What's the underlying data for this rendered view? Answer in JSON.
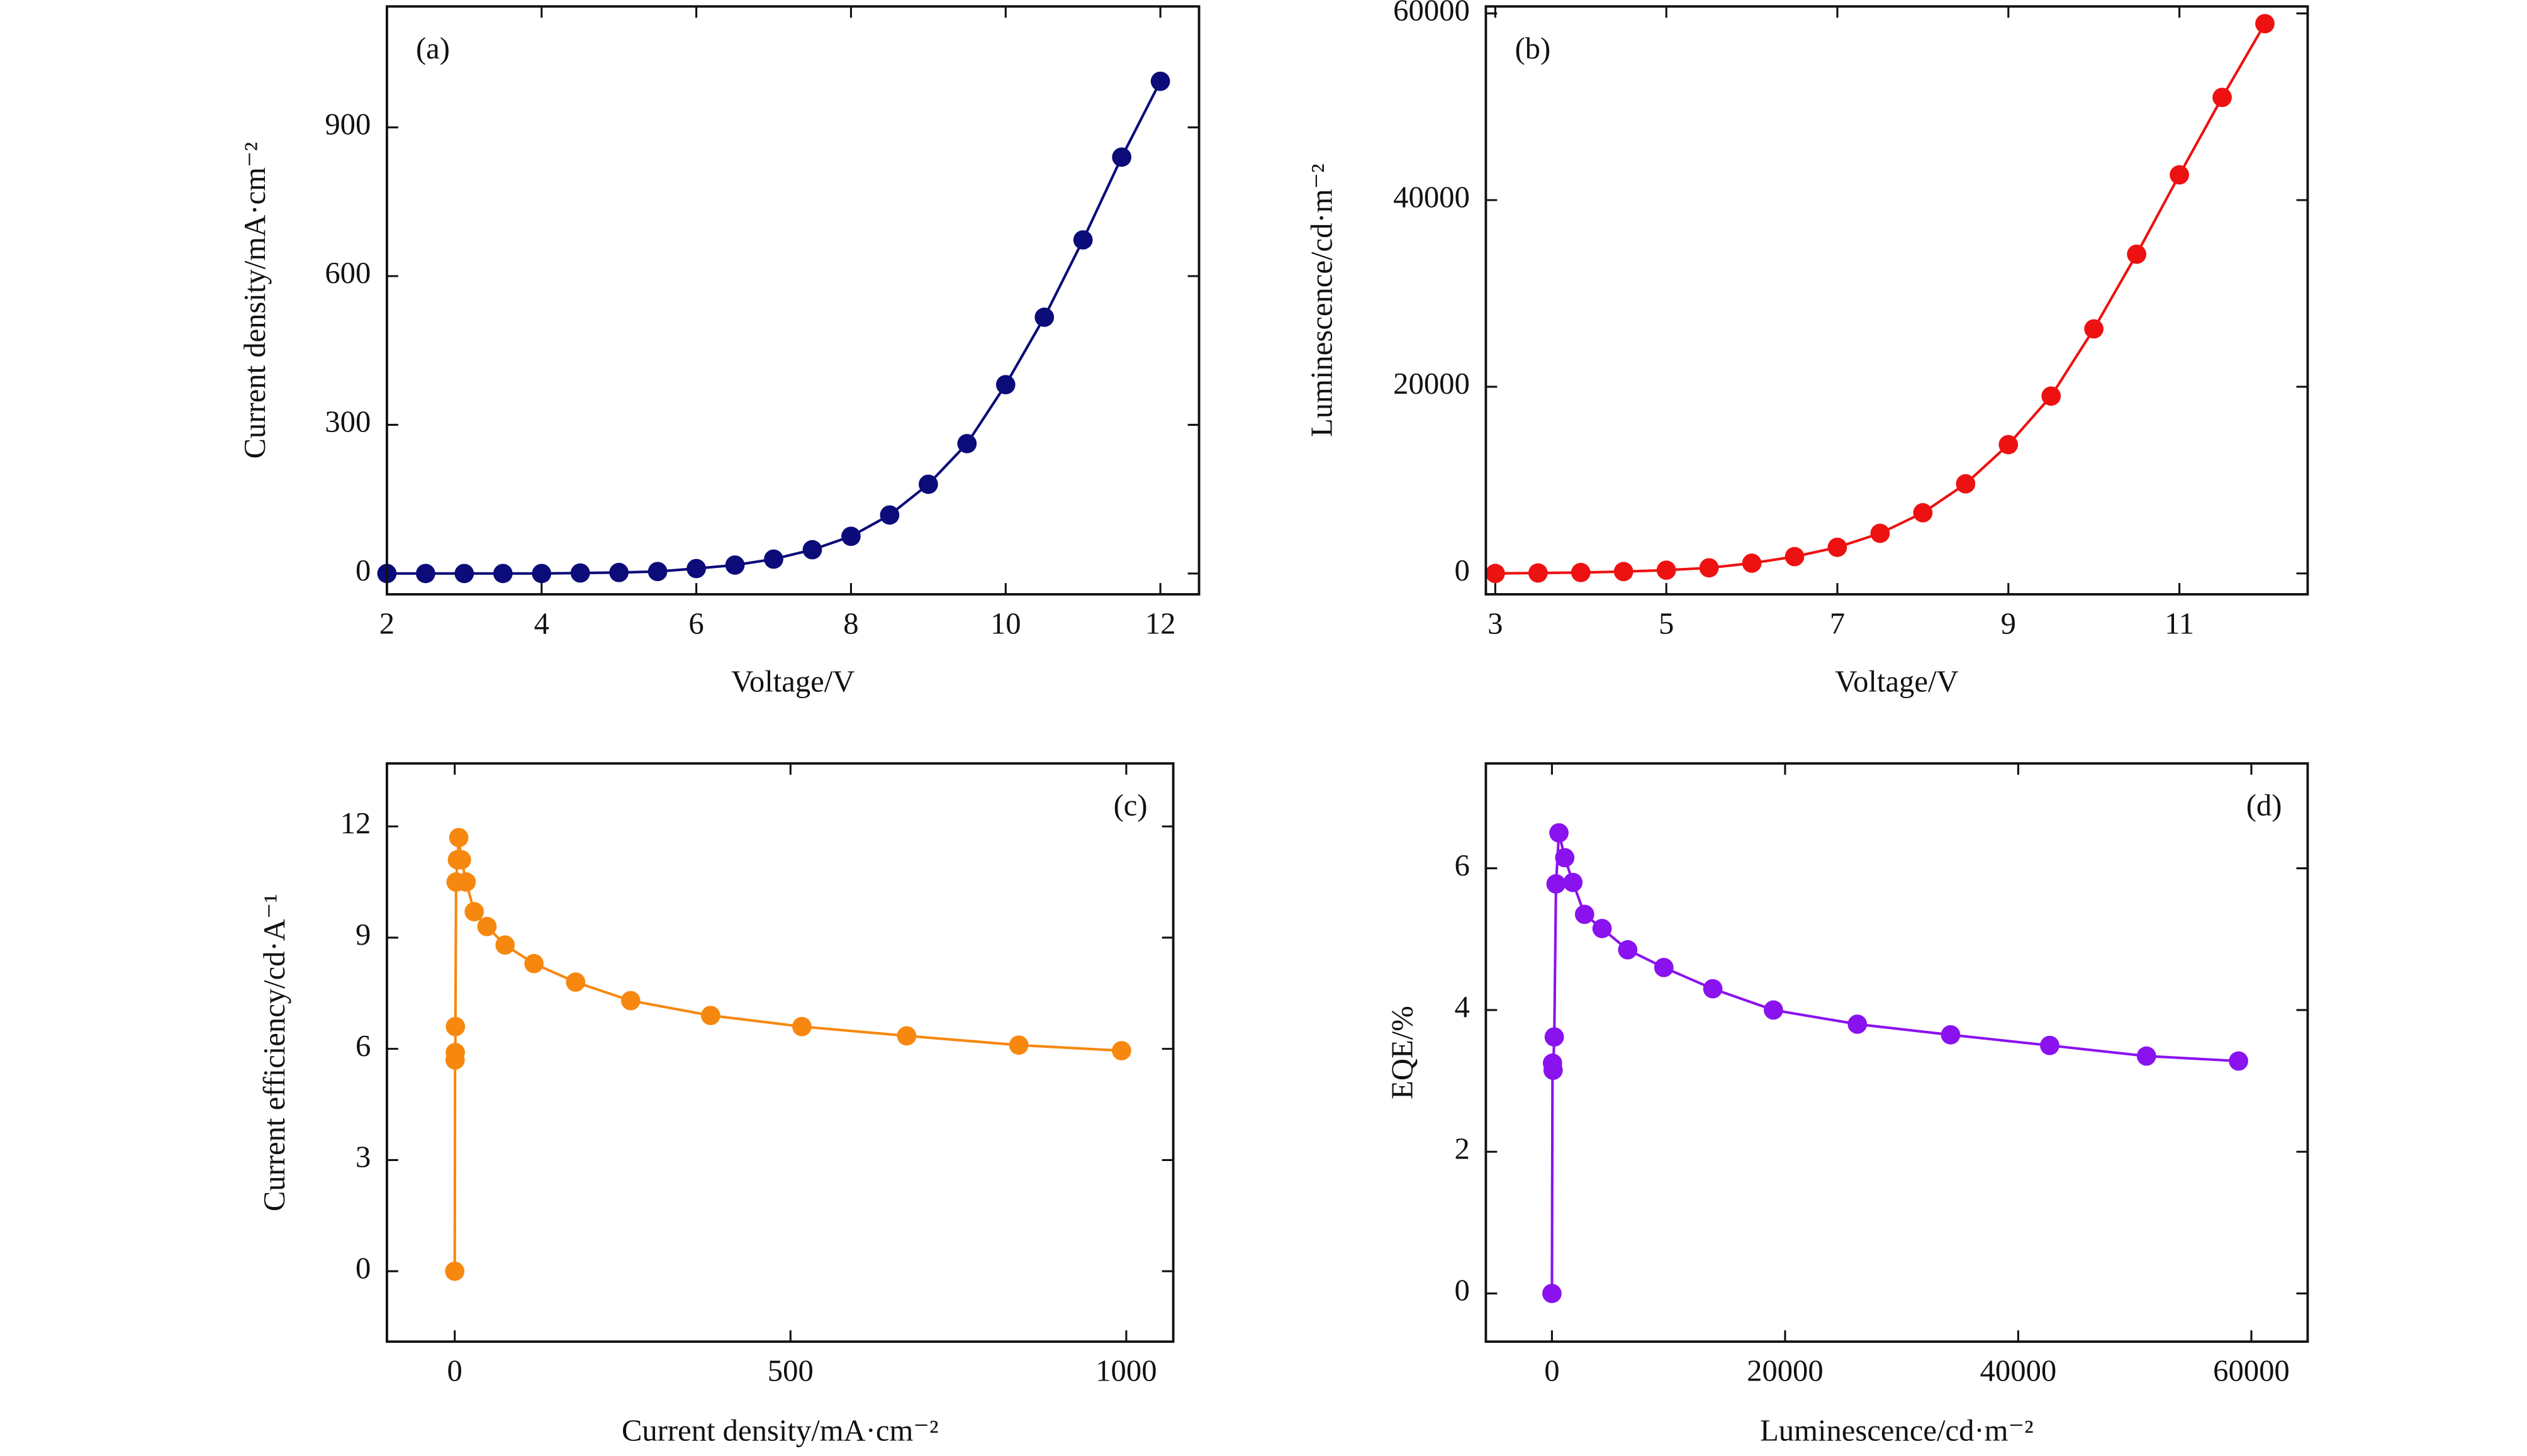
{
  "chart_data": [
    {
      "type": "line",
      "label": "(a)",
      "label_corner": "upper left",
      "xlabel": "Voltage/V",
      "ylabel": "Current density/mA·cm⁻²",
      "color": "#0b0b7a",
      "x": [
        2,
        2.5,
        3,
        3.5,
        4,
        4.5,
        5,
        5.5,
        6,
        6.5,
        7,
        7.5,
        8,
        8.5,
        9,
        9.5,
        10,
        10.5,
        11,
        11.5,
        12
      ],
      "values": [
        0,
        0,
        0,
        0,
        0,
        1,
        2,
        4,
        10,
        17,
        29,
        48,
        75,
        118,
        180,
        262,
        381,
        517,
        673,
        840,
        993
      ],
      "xlim": [
        2,
        12.5
      ],
      "ylim": [
        -42,
        1144
      ],
      "xticks": [
        2,
        4,
        6,
        8,
        10,
        12
      ],
      "yticks": [
        0,
        300,
        600,
        900
      ]
    },
    {
      "type": "line",
      "label": "(b)",
      "label_corner": "upper left",
      "xlabel": "Voltage/V",
      "ylabel": "Luminescence/cd·m⁻²",
      "color": "#ee1111",
      "x": [
        3,
        3.5,
        4,
        4.5,
        5,
        5.5,
        6,
        6.5,
        7,
        7.5,
        8,
        8.5,
        9,
        9.5,
        10,
        10.5,
        11,
        11.5,
        12
      ],
      "values": [
        0,
        50,
        100,
        200,
        350,
        600,
        1100,
        1800,
        2800,
        4300,
        6500,
        9600,
        13800,
        19000,
        26200,
        34200,
        42700,
        51000,
        58900
      ],
      "xlim": [
        2.89,
        12.5
      ],
      "ylim": [
        -2236,
        60745
      ],
      "xticks": [
        3,
        5,
        7,
        9,
        11
      ],
      "yticks": [
        0,
        20000,
        40000,
        60000
      ]
    },
    {
      "type": "line",
      "label": "(c)",
      "label_corner": "upper right",
      "xlabel": "Current density/mA·cm⁻²",
      "ylabel": "Current efficiency/cd·A⁻¹",
      "color": "#f7880f",
      "x": [
        0,
        0.5,
        0.8,
        1,
        2,
        4,
        6,
        10,
        17,
        29,
        48,
        75,
        118,
        180,
        262,
        381,
        517,
        673,
        840,
        993
      ],
      "values": [
        0,
        5.7,
        5.9,
        6.6,
        10.5,
        11.1,
        11.7,
        11.1,
        10.5,
        9.7,
        9.3,
        8.8,
        8.3,
        7.8,
        7.3,
        6.9,
        6.6,
        6.35,
        6.1,
        5.95
      ],
      "xlim": [
        -101,
        1070
      ],
      "ylim": [
        -1.9,
        13.7
      ],
      "xticks": [
        0,
        500,
        1000
      ],
      "yticks": [
        0,
        3,
        6,
        9,
        12
      ]
    },
    {
      "type": "line",
      "label": "(d)",
      "label_corner": "upper right",
      "xlabel": "Luminescence/cd·m⁻²",
      "ylabel": "EQE/%",
      "color": "#8a12ee",
      "x": [
        0,
        50,
        100,
        200,
        350,
        600,
        1100,
        1800,
        2800,
        4300,
        6500,
        9600,
        13800,
        19000,
        26200,
        34200,
        42700,
        51000,
        58900
      ],
      "values": [
        0,
        3.25,
        3.15,
        3.62,
        5.78,
        6.5,
        6.15,
        5.8,
        5.35,
        5.15,
        4.85,
        4.6,
        4.3,
        4.0,
        3.8,
        3.65,
        3.5,
        3.35,
        3.28
      ],
      "xlim": [
        -5668,
        64830
      ],
      "ylim": [
        -0.68,
        7.48
      ],
      "xticks": [
        0,
        20000,
        40000,
        60000
      ],
      "yticks": [
        0,
        2,
        4,
        6
      ]
    }
  ]
}
